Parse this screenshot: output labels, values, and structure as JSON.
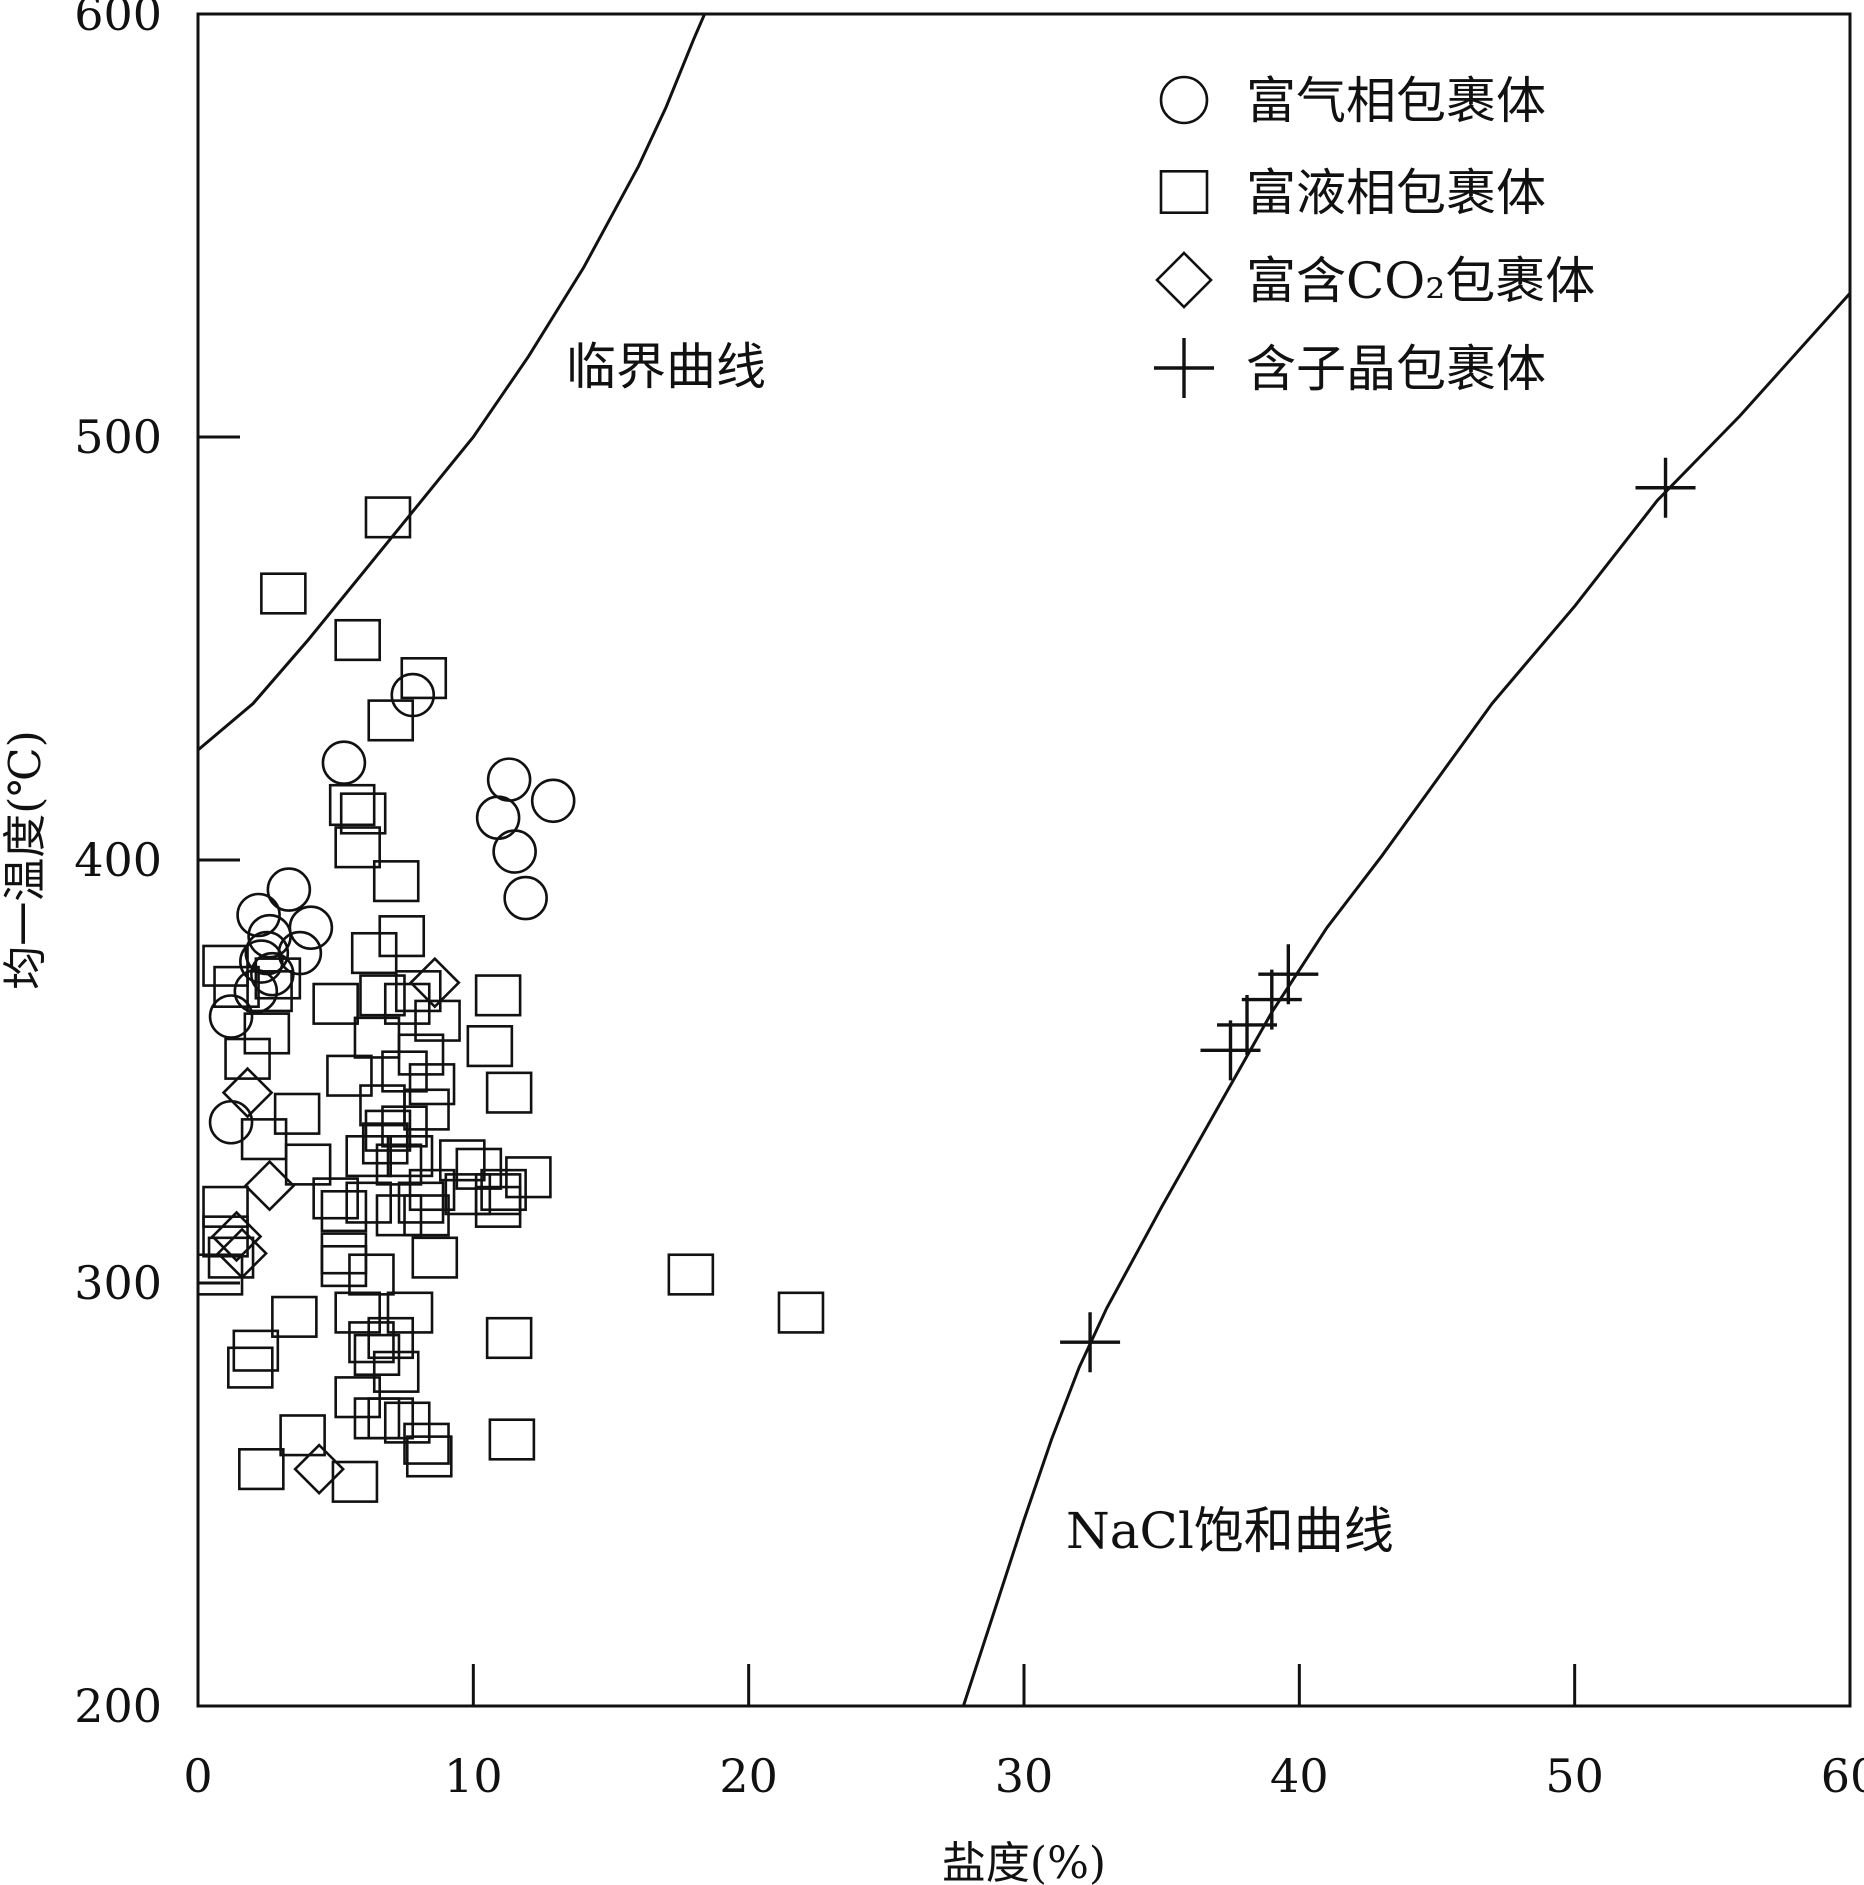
{
  "chart_data": {
    "type": "scatter",
    "xlabel": "盐度(%)",
    "ylabel": "均一温度(℃)",
    "xlim": [
      0,
      60
    ],
    "ylim": [
      200,
      600
    ],
    "xticks": [
      0,
      10,
      20,
      30,
      40,
      50,
      60
    ],
    "yticks": [
      200,
      300,
      400,
      500,
      600
    ],
    "legend_position": "top-right",
    "grid": false,
    "series": [
      {
        "name": "富气相包裹体",
        "marker": "circle",
        "points": [
          [
            7.8,
            439
          ],
          [
            5.3,
            423
          ],
          [
            11.3,
            419
          ],
          [
            12.9,
            414
          ],
          [
            10.9,
            410
          ],
          [
            11.5,
            402
          ],
          [
            11.9,
            391
          ],
          [
            3.3,
            393
          ],
          [
            2.2,
            387
          ],
          [
            4.1,
            384
          ],
          [
            2.6,
            382
          ],
          [
            2.5,
            378
          ],
          [
            3.7,
            378
          ],
          [
            2.3,
            376
          ],
          [
            2.7,
            373
          ],
          [
            2.1,
            369
          ],
          [
            1.2,
            363
          ],
          [
            1.2,
            338
          ]
        ]
      },
      {
        "name": "富液相包裹体",
        "marker": "square",
        "points": [
          [
            6.9,
            481
          ],
          [
            3.1,
            463
          ],
          [
            5.8,
            452
          ],
          [
            8.2,
            443
          ],
          [
            7.0,
            433
          ],
          [
            5.6,
            413
          ],
          [
            6.0,
            411
          ],
          [
            5.8,
            403
          ],
          [
            7.2,
            395
          ],
          [
            7.4,
            382
          ],
          [
            1.0,
            375
          ],
          [
            6.4,
            378
          ],
          [
            2.9,
            372
          ],
          [
            1.4,
            370
          ],
          [
            2.6,
            369
          ],
          [
            6.7,
            368
          ],
          [
            10.9,
            368
          ],
          [
            8.0,
            369
          ],
          [
            7.6,
            366
          ],
          [
            5.0,
            366
          ],
          [
            2.5,
            359
          ],
          [
            8.7,
            362
          ],
          [
            6.5,
            358
          ],
          [
            10.6,
            356
          ],
          [
            1.8,
            353
          ],
          [
            8.1,
            354
          ],
          [
            7.5,
            350
          ],
          [
            5.5,
            349
          ],
          [
            8.5,
            347
          ],
          [
            6.7,
            342
          ],
          [
            11.3,
            345
          ],
          [
            8.3,
            341
          ],
          [
            3.6,
            340
          ],
          [
            6.9,
            336
          ],
          [
            7.5,
            337
          ],
          [
            6.8,
            333
          ],
          [
            2.4,
            334
          ],
          [
            7.7,
            330
          ],
          [
            6.2,
            330
          ],
          [
            7.3,
            328
          ],
          [
            4.0,
            328
          ],
          [
            9.6,
            329
          ],
          [
            10.2,
            327
          ],
          [
            12.0,
            325
          ],
          [
            11.1,
            322
          ],
          [
            5.0,
            320
          ],
          [
            6.2,
            319
          ],
          [
            8.5,
            322
          ],
          [
            9.8,
            321
          ],
          [
            10.9,
            321
          ],
          [
            8.1,
            319
          ],
          [
            1.0,
            318
          ],
          [
            7.3,
            316
          ],
          [
            5.3,
            317
          ],
          [
            10.9,
            318
          ],
          [
            8.3,
            316
          ],
          [
            1.0,
            311
          ],
          [
            1.2,
            306
          ],
          [
            5.3,
            307
          ],
          [
            5.3,
            304
          ],
          [
            8.6,
            306
          ],
          [
            6.3,
            302
          ],
          [
            17.9,
            302
          ],
          [
            0.8,
            302
          ],
          [
            3.5,
            292
          ],
          [
            21.9,
            293
          ],
          [
            5.8,
            293
          ],
          [
            7.7,
            293
          ],
          [
            6.3,
            286
          ],
          [
            11.3,
            287
          ],
          [
            7.0,
            287
          ],
          [
            2.1,
            284
          ],
          [
            6.5,
            283
          ],
          [
            1.9,
            280
          ],
          [
            7.2,
            279
          ],
          [
            5.8,
            273
          ],
          [
            6.5,
            268
          ],
          [
            7.6,
            267
          ],
          [
            7.0,
            268
          ],
          [
            3.8,
            264
          ],
          [
            8.3,
            262
          ],
          [
            11.4,
            263
          ],
          [
            8.4,
            259
          ],
          [
            2.3,
            256
          ],
          [
            5.7,
            253
          ]
        ]
      },
      {
        "name": "富含CO₂包裹体",
        "marker": "diamond",
        "points": [
          [
            8.6,
            371
          ],
          [
            1.8,
            345
          ],
          [
            2.6,
            323
          ],
          [
            1.4,
            311
          ],
          [
            1.6,
            307
          ],
          [
            4.4,
            256
          ]
        ]
      },
      {
        "name": "含子晶包裹体",
        "marker": "plus",
        "points": [
          [
            53.3,
            488
          ],
          [
            39.6,
            373
          ],
          [
            39.0,
            367
          ],
          [
            38.1,
            361
          ],
          [
            37.5,
            355
          ],
          [
            32.4,
            286
          ]
        ]
      }
    ],
    "curves": [
      {
        "label": "临界曲线",
        "points": [
          [
            0,
            426
          ],
          [
            2,
            437
          ],
          [
            4,
            452
          ],
          [
            6,
            468
          ],
          [
            8,
            484
          ],
          [
            10,
            500
          ],
          [
            12,
            519
          ],
          [
            14,
            540
          ],
          [
            16,
            564
          ],
          [
            17,
            578
          ],
          [
            18,
            594
          ],
          [
            18.4,
            600
          ]
        ]
      },
      {
        "label": "NaCl饱和曲线",
        "points": [
          [
            27.8,
            200
          ],
          [
            29,
            224
          ],
          [
            30,
            244
          ],
          [
            31,
            263
          ],
          [
            32,
            280
          ],
          [
            33,
            294
          ],
          [
            35,
            318
          ],
          [
            37,
            341
          ],
          [
            39,
            364
          ],
          [
            41,
            384
          ],
          [
            43,
            401
          ],
          [
            45,
            419
          ],
          [
            47,
            437
          ],
          [
            50,
            460
          ],
          [
            53,
            485
          ],
          [
            56,
            505
          ],
          [
            60,
            534
          ]
        ]
      }
    ]
  }
}
